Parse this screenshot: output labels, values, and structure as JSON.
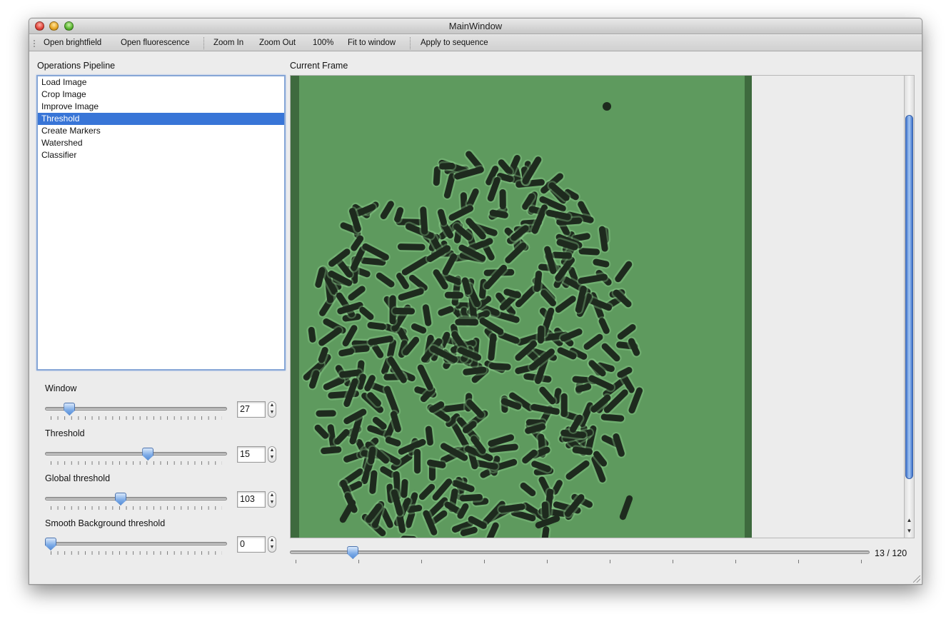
{
  "window": {
    "title": "MainWindow"
  },
  "toolbar": {
    "open_brightfield": "Open brightfield",
    "open_fluorescence": "Open fluorescence",
    "zoom_in": "Zoom In",
    "zoom_out": "Zoom Out",
    "zoom_100": "100%",
    "fit_to_window": "Fit to window",
    "apply_to_sequence": "Apply to sequence"
  },
  "pipeline": {
    "title": "Operations Pipeline",
    "items": [
      {
        "label": "Load Image",
        "selected": false
      },
      {
        "label": "Crop Image",
        "selected": false
      },
      {
        "label": "Improve Image",
        "selected": false
      },
      {
        "label": "Threshold",
        "selected": true
      },
      {
        "label": "Create Markers",
        "selected": false
      },
      {
        "label": "Watershed",
        "selected": false
      },
      {
        "label": "Classifier",
        "selected": false
      }
    ]
  },
  "params": [
    {
      "label": "Window",
      "value": "27",
      "level": 0.11
    },
    {
      "label": "Threshold",
      "value": "15",
      "level": 0.57
    },
    {
      "label": "Global threshold",
      "value": "103",
      "level": 0.41
    },
    {
      "label": "Smooth Background threshold",
      "value": "0",
      "level": 0.0
    }
  ],
  "frame": {
    "title": "Current Frame",
    "counter": "13 / 120",
    "current": 13,
    "total": 120,
    "overlay_color": "#5a9a5a",
    "cell_color": "#1e2a1e"
  },
  "colors": {
    "selection": "#3875d7",
    "accent": "#6a9fe0"
  }
}
